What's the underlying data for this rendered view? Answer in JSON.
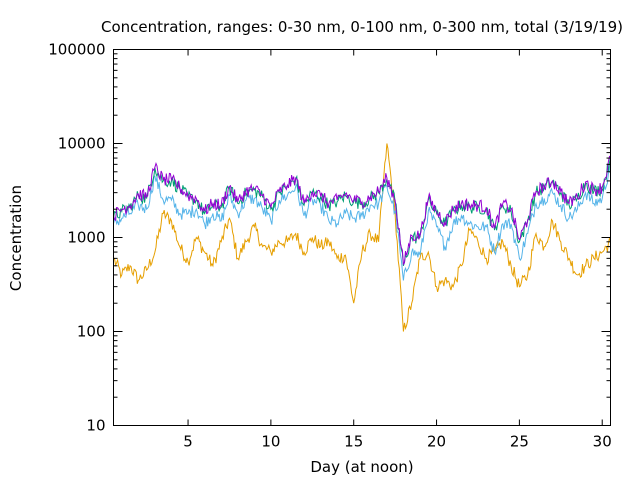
{
  "chart_data": {
    "type": "line",
    "title": "Concentration, ranges: 0-30 nm, 0-100 nm, 0-300 nm, total (3/19/19)",
    "xlabel": "Day (at noon)",
    "ylabel": "Concentration",
    "x_ticks": [
      5,
      10,
      15,
      20,
      25,
      30
    ],
    "x_tick_labels": [
      "5",
      "10",
      "15",
      "20",
      "25",
      "30"
    ],
    "xlim": [
      0.5,
      30.5
    ],
    "y_scale": "log",
    "ylim": [
      10,
      100000
    ],
    "y_ticks": [
      10,
      100,
      1000,
      10000,
      100000
    ],
    "y_tick_labels": [
      "10",
      "100",
      "1000",
      "10000",
      "100000"
    ],
    "grid": false,
    "legend": "none",
    "x": [
      0.5,
      1.0,
      1.5,
      2.0,
      2.5,
      3.0,
      3.5,
      4.0,
      4.5,
      5.0,
      5.5,
      6.0,
      6.5,
      7.0,
      7.5,
      8.0,
      8.5,
      9.0,
      9.5,
      10.0,
      10.5,
      11.0,
      11.5,
      12.0,
      12.5,
      13.0,
      13.5,
      14.0,
      14.5,
      15.0,
      15.5,
      16.0,
      16.5,
      17.0,
      17.5,
      18.0,
      18.5,
      19.0,
      19.5,
      20.0,
      20.5,
      21.0,
      21.5,
      22.0,
      22.5,
      23.0,
      23.5,
      24.0,
      24.5,
      25.0,
      25.5,
      26.0,
      26.5,
      27.0,
      27.5,
      28.0,
      28.5,
      29.0,
      29.5,
      30.0,
      30.5
    ],
    "series": [
      {
        "color": "#e69f00",
        "values": [
          600,
          400,
          500,
          350,
          450,
          700,
          1800,
          1500,
          800,
          550,
          1000,
          700,
          500,
          900,
          1600,
          600,
          900,
          1300,
          800,
          700,
          900,
          900,
          1100,
          700,
          1000,
          800,
          900,
          600,
          650,
          200,
          700,
          1100,
          900,
          10000,
          1800,
          100,
          200,
          600,
          700,
          300,
          350,
          300,
          500,
          1200,
          900,
          600,
          700,
          900,
          500,
          300,
          400,
          1100,
          800,
          1500,
          900,
          600,
          400,
          500,
          600,
          700,
          900
        ]
      },
      {
        "color": "#56b4e9",
        "values": [
          1400,
          1600,
          1800,
          2200,
          2000,
          4500,
          2500,
          2500,
          1800,
          1800,
          2000,
          1400,
          1800,
          1500,
          2800,
          1800,
          2500,
          2600,
          2000,
          1500,
          2500,
          2800,
          3500,
          1700,
          2500,
          2200,
          1500,
          1400,
          1800,
          1600,
          1700,
          2200,
          2300,
          3500,
          1900,
          350,
          700,
          650,
          1900,
          1300,
          800,
          1400,
          1700,
          1400,
          1300,
          1300,
          700,
          1400,
          1400,
          600,
          1100,
          2300,
          2600,
          3000,
          2200,
          1600,
          2000,
          3000,
          2300,
          2600,
          6000
        ]
      },
      {
        "color": "#009e73",
        "values": [
          1600,
          1900,
          2100,
          2800,
          2600,
          5500,
          4000,
          4000,
          3300,
          2700,
          2500,
          1800,
          2200,
          2100,
          3400,
          2300,
          3000,
          3200,
          2700,
          2000,
          3000,
          3500,
          4200,
          2200,
          3000,
          2700,
          2200,
          2400,
          2800,
          2400,
          2300,
          2600,
          3000,
          4200,
          2400,
          500,
          1000,
          1000,
          2500,
          1800,
          1400,
          1900,
          2200,
          2100,
          2100,
          2000,
          1200,
          2200,
          1900,
          900,
          1500,
          3000,
          3400,
          3900,
          3000,
          2200,
          2600,
          3800,
          3100,
          3300,
          7000
        ]
      },
      {
        "color": "#9400d3",
        "values": [
          1700,
          2000,
          2200,
          2900,
          2700,
          5600,
          4100,
          4100,
          3400,
          2800,
          2600,
          1900,
          2300,
          2200,
          3500,
          2400,
          3100,
          3300,
          2800,
          2100,
          3100,
          3600,
          4300,
          2300,
          3100,
          2800,
          2300,
          2500,
          2900,
          2500,
          2400,
          2700,
          3100,
          4300,
          2500,
          520,
          1050,
          1050,
          2600,
          1900,
          1450,
          2000,
          2300,
          2200,
          2200,
          2100,
          1250,
          2300,
          2000,
          950,
          1550,
          3100,
          3500,
          4000,
          3100,
          2300,
          2700,
          3900,
          3200,
          3400,
          7200
        ]
      }
    ]
  }
}
